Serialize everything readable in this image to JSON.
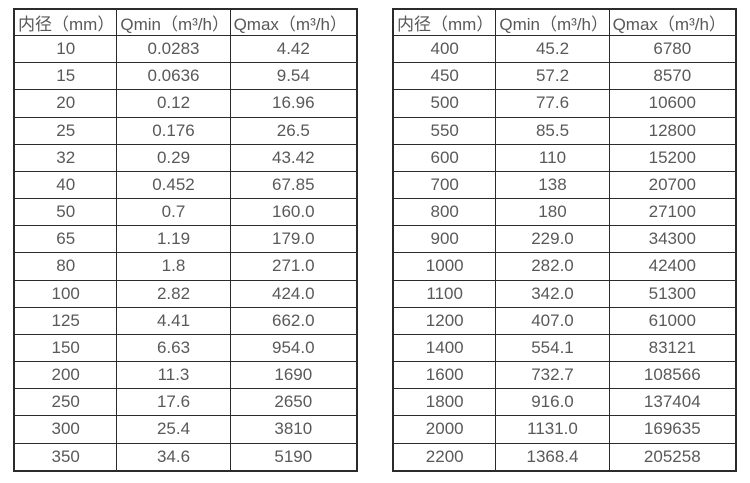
{
  "page": {
    "background_color": "#ffffff",
    "text_color": "#595959",
    "border_color": "#2b2b2b"
  },
  "tables": [
    {
      "name": "small-diameter-flow-table",
      "headers": [
        "内径（mm）",
        "Qmin（m³/h）",
        "Qmax（m³/h）"
      ],
      "rows": [
        [
          "10",
          "0.0283",
          "4.42"
        ],
        [
          "15",
          "0.0636",
          "9.54"
        ],
        [
          "20",
          "0.12",
          "16.96"
        ],
        [
          "25",
          "0.176",
          "26.5"
        ],
        [
          "32",
          "0.29",
          "43.42"
        ],
        [
          "40",
          "0.452",
          "67.85"
        ],
        [
          "50",
          "0.7",
          "160.0"
        ],
        [
          "65",
          "1.19",
          "179.0"
        ],
        [
          "80",
          "1.8",
          "271.0"
        ],
        [
          "100",
          "2.82",
          "424.0"
        ],
        [
          "125",
          "4.41",
          "662.0"
        ],
        [
          "150",
          "6.63",
          "954.0"
        ],
        [
          "200",
          "11.3",
          "1690"
        ],
        [
          "250",
          "17.6",
          "2650"
        ],
        [
          "300",
          "25.4",
          "3810"
        ],
        [
          "350",
          "34.6",
          "5190"
        ]
      ]
    },
    {
      "name": "large-diameter-flow-table",
      "headers": [
        "内径（mm）",
        "Qmin（m³/h）",
        "Qmax（m³/h）"
      ],
      "rows": [
        [
          "400",
          "45.2",
          "6780"
        ],
        [
          "450",
          "57.2",
          "8570"
        ],
        [
          "500",
          "77.6",
          "10600"
        ],
        [
          "550",
          "85.5",
          "12800"
        ],
        [
          "600",
          "110",
          "15200"
        ],
        [
          "700",
          "138",
          "20700"
        ],
        [
          "800",
          "180",
          "27100"
        ],
        [
          "900",
          "229.0",
          "34300"
        ],
        [
          "1000",
          "282.0",
          "42400"
        ],
        [
          "1100",
          "342.0",
          "51300"
        ],
        [
          "1200",
          "407.0",
          "61000"
        ],
        [
          "1400",
          "554.1",
          "83121"
        ],
        [
          "1600",
          "732.7",
          "108566"
        ],
        [
          "1800",
          "916.0",
          "137404"
        ],
        [
          "2000",
          "1131.0",
          "169635"
        ],
        [
          "2200",
          "1368.4",
          "205258"
        ]
      ]
    }
  ]
}
